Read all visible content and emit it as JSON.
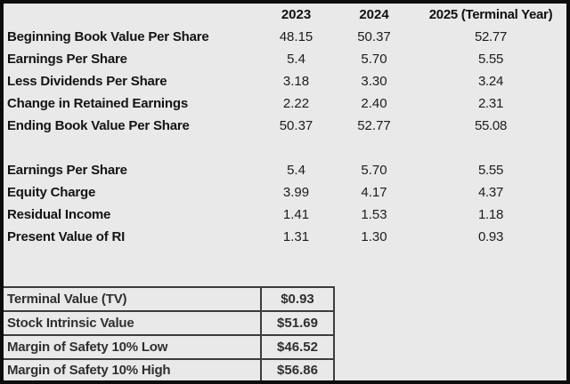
{
  "colors": {
    "background": "#e9e9e9",
    "frame_border": "#0c0c0c",
    "summary_border": "#3c3c3c",
    "label_text": "#141414",
    "value_text": "#1c1c1c",
    "summary_text": "#2f2f2f"
  },
  "chart_data": {
    "type": "table",
    "columns": [
      "2023",
      "2024",
      "2025 (Terminal Year)"
    ],
    "book_value_rows": [
      {
        "label": "Beginning Book Value Per Share",
        "values": [
          "48.15",
          "50.37",
          "52.77"
        ]
      },
      {
        "label": "Earnings Per Share",
        "values": [
          "5.4",
          "5.70",
          "5.55"
        ]
      },
      {
        "label": "Less Dividends Per Share",
        "values": [
          "3.18",
          "3.30",
          "3.24"
        ]
      },
      {
        "label": "Change in Retained Earnings",
        "values": [
          "2.22",
          "2.40",
          "2.31"
        ]
      },
      {
        "label": "Ending Book Value Per Share",
        "values": [
          "50.37",
          "52.77",
          "55.08"
        ]
      }
    ],
    "residual_income_rows": [
      {
        "label": "Earnings Per Share",
        "values": [
          "5.4",
          "5.70",
          "5.55"
        ]
      },
      {
        "label": "Equity Charge",
        "values": [
          "3.99",
          "4.17",
          "4.37"
        ]
      },
      {
        "label": "Residual Income",
        "values": [
          "1.41",
          "1.53",
          "1.18"
        ]
      },
      {
        "label": "Present Value of RI",
        "values": [
          "1.31",
          "1.30",
          "0.93"
        ]
      }
    ],
    "summary_rows": [
      {
        "label": "Terminal Value (TV)",
        "value": "$0.93"
      },
      {
        "label": "Stock Intrinsic Value",
        "value": "$51.69"
      },
      {
        "label": "Margin of Safety 10% Low",
        "value": "$46.52"
      },
      {
        "label": "Margin of Safety 10% High",
        "value": "$56.86"
      }
    ]
  }
}
